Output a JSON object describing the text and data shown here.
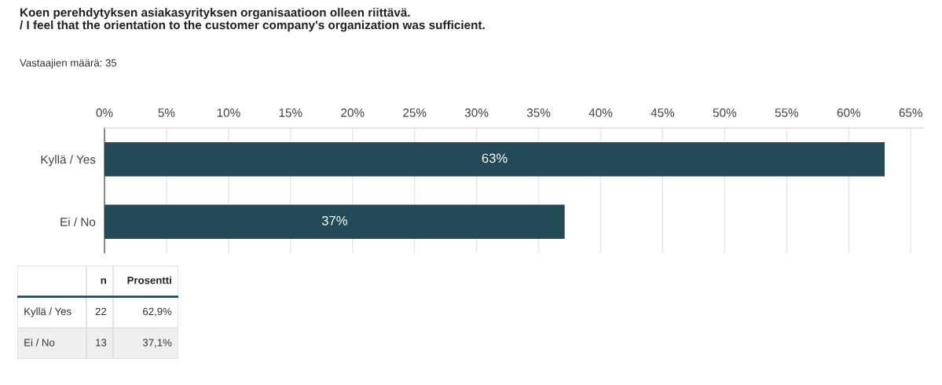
{
  "chart_data": [
    {
      "type": "bar",
      "orientation": "horizontal",
      "title": "Koen perehdytyksen asiakasyrityksen organisaatioon olleen riittävä.\n/ I feel that the orientation to the customer company's organization was sufficient.",
      "subtitle": "Vastaajien määrä: 35",
      "categories": [
        "Kyllä / Yes",
        "Ei / No"
      ],
      "values": [
        62.9,
        37.1
      ],
      "value_labels": [
        "63%",
        "37%"
      ],
      "color": "#234b57",
      "xlim": [
        0,
        66
      ],
      "xticks": [
        {
          "value": 0,
          "label": "0%"
        },
        {
          "value": 5,
          "label": "5%"
        },
        {
          "value": 10,
          "label": "10%"
        },
        {
          "value": 15,
          "label": "15%"
        },
        {
          "value": 20,
          "label": "20%"
        },
        {
          "value": 25,
          "label": "25%"
        },
        {
          "value": 30,
          "label": "30%"
        },
        {
          "value": 35,
          "label": "35%"
        },
        {
          "value": 40,
          "label": "40%"
        },
        {
          "value": 45,
          "label": "45%"
        },
        {
          "value": 50,
          "label": "50%"
        },
        {
          "value": 55,
          "label": "55%"
        },
        {
          "value": 60,
          "label": "60%"
        },
        {
          "value": 65,
          "label": "65%"
        }
      ],
      "grid": "x"
    },
    {
      "type": "other",
      "categories": [
        "n",
        "Prosentti"
      ],
      "y_categories": [
        "Kyllä / Yes",
        "Ei / No"
      ],
      "cells": [
        [
          "22",
          "62,9%"
        ],
        [
          "13",
          "37,1%"
        ]
      ]
    }
  ]
}
